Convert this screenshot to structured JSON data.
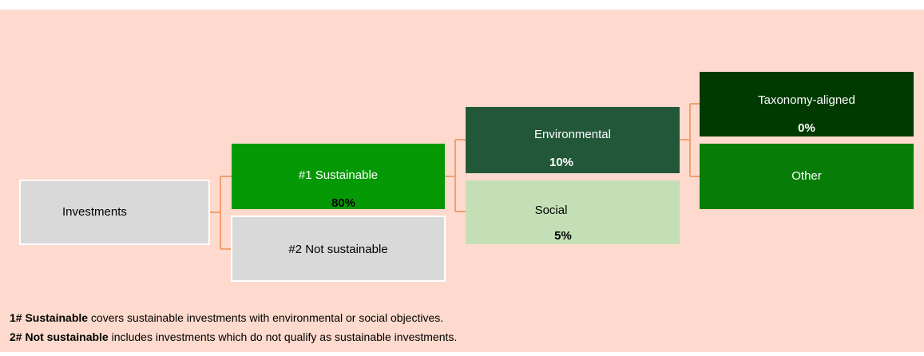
{
  "nodes": [
    {
      "label": "Investments"
    },
    {
      "label": "#1 Sustainable",
      "value": "80%"
    },
    {
      "label": "#2 Not sustainable"
    },
    {
      "label": "Environmental",
      "value": "10%"
    },
    {
      "label": "Social",
      "value": "5%"
    },
    {
      "label": "Taxonomy-aligned",
      "value": "0%"
    },
    {
      "label": "Other"
    }
  ],
  "notes": [
    {
      "term": "1# Sustainable",
      "text": " covers sustainable investments with environmental or social objectives."
    },
    {
      "term": "2# Not sustainable",
      "text": " includes investments which do not qualify as sustainable investments."
    }
  ]
}
